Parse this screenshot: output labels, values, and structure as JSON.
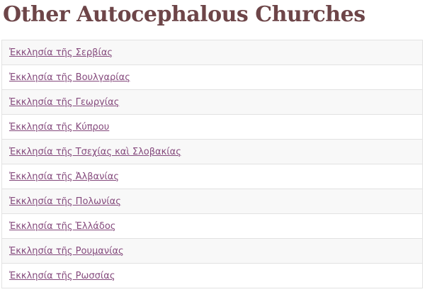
{
  "page": {
    "title": "Other Autocephalous Churches"
  },
  "colors": {
    "heading": "#6d4548",
    "link": "#84497c",
    "border": "#e2e2e2",
    "row_alt_bg": "#f8f8f8",
    "row_bg": "#ffffff"
  },
  "churches": [
    {
      "label": "Ἐκκλησία τῆς Σερβίας"
    },
    {
      "label": "Ἐκκλησία τῆς Βουλγαρίας"
    },
    {
      "label": "Ἐκκλησία τῆς Γεωργίας"
    },
    {
      "label": "Ἐκκλησία τῆς Κύπρου"
    },
    {
      "label": "Ἐκκλησία τῆς Τσεχίας καὶ Σλοβακίας"
    },
    {
      "label": "Ἐκκλησία τῆς Ἀλβανίας"
    },
    {
      "label": "Ἐκκλησία τῆς Πολωνίας"
    },
    {
      "label": "Ἐκκλησία τῆς Ἑλλάδος"
    },
    {
      "label": "Ἐκκλησία τῆς Ρουμανίας"
    },
    {
      "label": "Ἐκκλησία τῆς Ρωσσίας"
    }
  ]
}
